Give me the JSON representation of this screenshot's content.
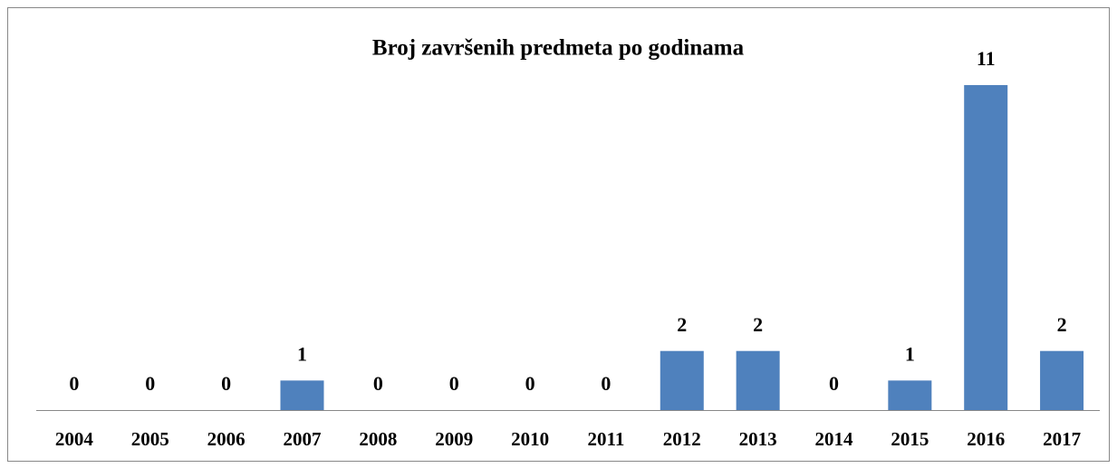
{
  "chart_data": {
    "type": "bar",
    "title": "Broj završenih predmeta po godinama",
    "categories": [
      "2004",
      "2005",
      "2006",
      "2007",
      "2008",
      "2009",
      "2010",
      "2011",
      "2012",
      "2013",
      "2014",
      "2015",
      "2016",
      "2017"
    ],
    "values": [
      0,
      0,
      0,
      1,
      0,
      0,
      0,
      0,
      2,
      2,
      0,
      1,
      11,
      2
    ],
    "color": "#4f81bd"
  }
}
